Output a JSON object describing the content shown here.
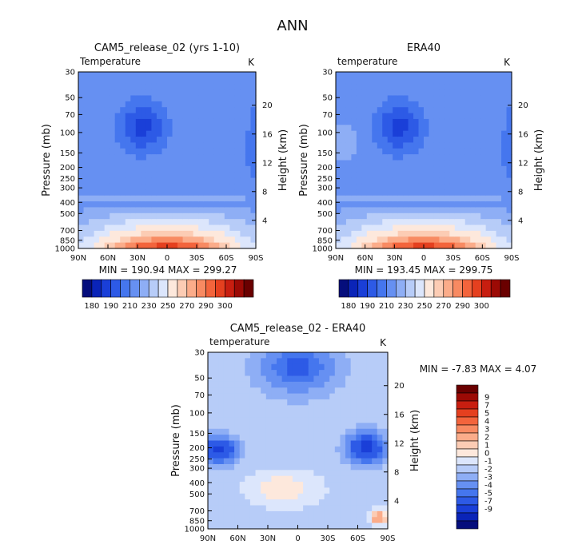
{
  "figure": {
    "title": "ANN",
    "palette_cool": [
      "#050e7c",
      "#0a24b8",
      "#1a3fd8",
      "#2d5ae6",
      "#4576ee",
      "#6690f2",
      "#8eaef5",
      "#b7ccf8",
      "#dce6fc"
    ],
    "palette_warm": [
      "#fde8dc",
      "#fcccb4",
      "#fbac8a",
      "#f88a62",
      "#f3643c",
      "#e5401f",
      "#c81e10",
      "#9c0a05",
      "#6a0000"
    ]
  },
  "chart_data": [
    {
      "type": "heatmap",
      "title": "CAM5_release_02 (yrs 1-10)",
      "subtitle_left": "Temperature",
      "subtitle_right": "K",
      "xlabel": "",
      "ylabel": "Pressure (mb)",
      "ylabel_right": "Height (km)",
      "x_ticks": [
        "90N",
        "60N",
        "30N",
        "0",
        "30S",
        "60S",
        "90S"
      ],
      "y_ticks": [
        "30",
        "50",
        "70",
        "100",
        "150",
        "200",
        "250",
        "300",
        "400",
        "500",
        "700",
        "850",
        "1000"
      ],
      "y2_ticks": [
        "20",
        "16",
        "12",
        "8",
        "4"
      ],
      "ylim": [
        1000,
        30
      ],
      "min": "190.94",
      "max": "299.27",
      "stat_label": "MIN = 190.94   MAX = 299.27",
      "levels": [
        "180",
        "190",
        "210",
        "230",
        "250",
        "270",
        "290",
        "300"
      ],
      "field": "model"
    },
    {
      "type": "heatmap",
      "title": "ERA40",
      "subtitle_left": "temperature",
      "subtitle_right": "K",
      "xlabel": "",
      "ylabel": "Pressure (mb)",
      "ylabel_right": "Height (km)",
      "x_ticks": [
        "90N",
        "60N",
        "30N",
        "0",
        "30S",
        "60S",
        "90S"
      ],
      "y_ticks": [
        "30",
        "50",
        "70",
        "100",
        "150",
        "200",
        "250",
        "300",
        "400",
        "500",
        "700",
        "850",
        "1000"
      ],
      "y2_ticks": [
        "20",
        "16",
        "12",
        "8",
        "4"
      ],
      "ylim": [
        1000,
        30
      ],
      "min": "193.45",
      "max": "299.75",
      "stat_label": "MIN = 193.45   MAX = 299.75",
      "levels": [
        "180",
        "190",
        "210",
        "230",
        "250",
        "270",
        "290",
        "300"
      ],
      "field": "obs"
    },
    {
      "type": "heatmap",
      "title": "CAM5_release_02 - ERA40",
      "subtitle_left": "temperature",
      "subtitle_right": "K",
      "xlabel": "",
      "ylabel": "Pressure (mb)",
      "ylabel_right": "Height (km)",
      "x_ticks": [
        "90N",
        "60N",
        "30N",
        "0",
        "30S",
        "60S",
        "90S"
      ],
      "y_ticks": [
        "30",
        "50",
        "70",
        "100",
        "150",
        "200",
        "250",
        "300",
        "400",
        "500",
        "700",
        "850",
        "1000"
      ],
      "y2_ticks": [
        "20",
        "16",
        "12",
        "8",
        "4"
      ],
      "ylim": [
        1000,
        30
      ],
      "min": "-7.83",
      "max": "4.07",
      "stat_label": "MIN =   -7.83   MAX =    4.07",
      "levels": [
        "9",
        "7",
        "5",
        "4",
        "3",
        "2",
        "1",
        "0",
        "-1",
        "-2",
        "-3",
        "-4",
        "-5",
        "-7",
        "-9"
      ],
      "field": "diff"
    }
  ]
}
